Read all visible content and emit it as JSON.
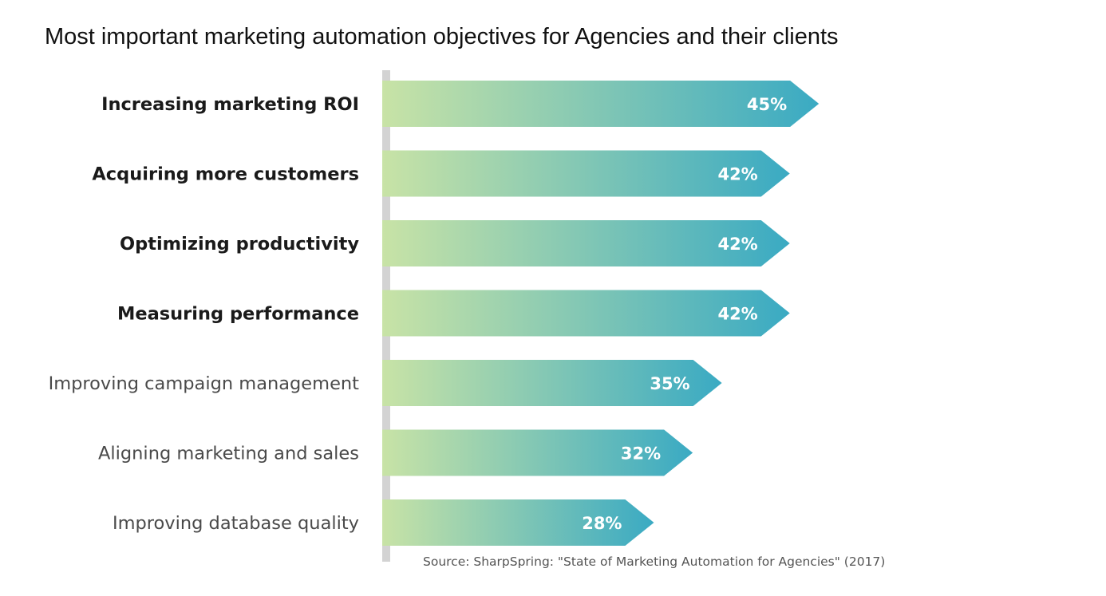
{
  "chart_data": {
    "type": "bar",
    "orientation": "horizontal",
    "title": "Most important marketing automation objectives for Agencies and their clients",
    "categories": [
      "Increasing marketing ROI",
      "Acquiring more customers",
      "Optimizing productivity",
      "Measuring performance",
      "Improving campaign management",
      "Aligning marketing and sales",
      "Improving database quality"
    ],
    "values": [
      45,
      42,
      42,
      42,
      35,
      32,
      28
    ],
    "value_labels": [
      "45%",
      "42%",
      "42%",
      "42%",
      "35%",
      "32%",
      "28%"
    ],
    "emphasized": [
      true,
      true,
      true,
      true,
      false,
      false,
      false
    ],
    "unit": "%",
    "xlim": [
      0,
      45
    ],
    "xlabel": "",
    "ylabel": "",
    "grid": false,
    "legend": "none",
    "source": "Source: SharpSpring: \"State of Marketing Automation for Agencies\"  (2017)"
  },
  "colors": {
    "bar_gradient_start": "#c8e3a6",
    "bar_gradient_end": "#3aaac3",
    "axis_line": "#d3d3d3",
    "label_emphasized": "#1a1a1a",
    "label_regular": "#4a4a4a",
    "value_label": "#ffffff",
    "title": "#111111",
    "source": "#555555"
  }
}
